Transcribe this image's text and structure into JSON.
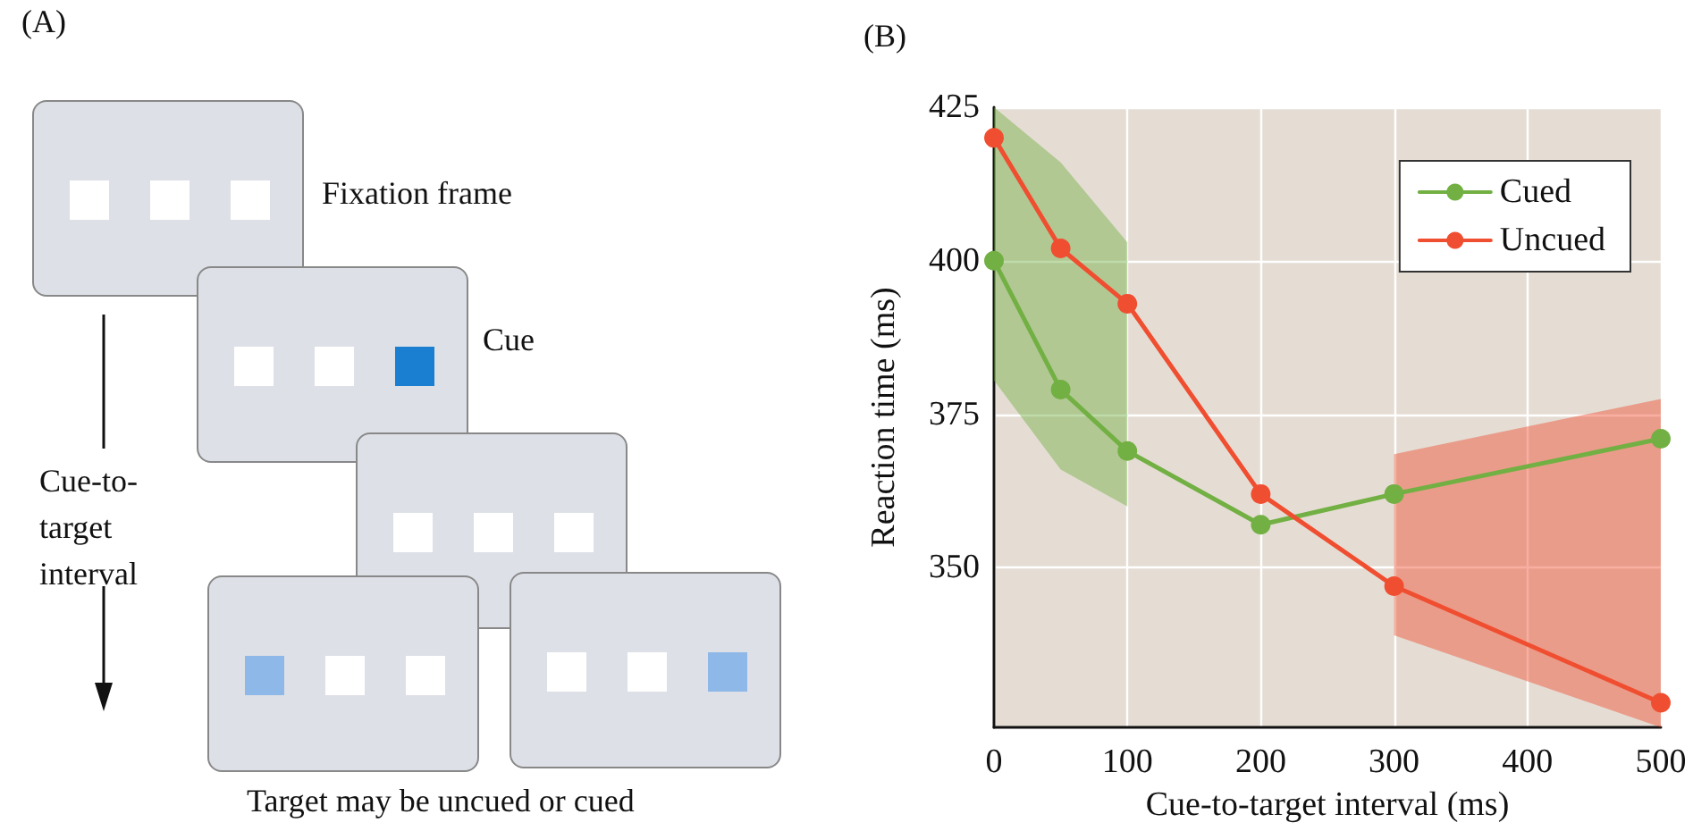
{
  "chart_data": [
    {
      "type": "other",
      "title": "(A)",
      "annotations": [
        "Fixation frame",
        "Cue",
        "Cue-to-target interval",
        "Target may be uncued or cued"
      ]
    },
    {
      "type": "line",
      "title": "(B)",
      "xlabel": "Cue-to-target interval (ms)",
      "ylabel": "Reaction time (ms)",
      "xlim": [
        0,
        500
      ],
      "xticks": [
        0,
        100,
        200,
        300,
        400,
        500
      ],
      "ylim": [
        324,
        425
      ],
      "yticks": [
        350,
        375,
        400,
        425
      ],
      "grid": true,
      "legend": "top right",
      "marker": "circle",
      "line_style": "solid",
      "series": [
        {
          "name": "Cued",
          "color": "#72b043",
          "x": [
            0,
            50,
            100,
            200,
            300,
            500
          ],
          "values": [
            400,
            379,
            369,
            357,
            362,
            371
          ],
          "lower": [
            380.5,
            366,
            360,
            null,
            null,
            null
          ],
          "upper": [
            425,
            416,
            403,
            null,
            null,
            null
          ]
        },
        {
          "name": "Uncued",
          "color": "#f04e30",
          "x": [
            0,
            50,
            100,
            200,
            300,
            500
          ],
          "values": [
            420,
            402,
            393,
            362,
            347,
            328
          ],
          "lower": [
            null,
            null,
            null,
            null,
            339,
            324
          ],
          "upper": [
            null,
            null,
            null,
            null,
            368.5,
            377.5
          ]
        }
      ]
    }
  ]
}
